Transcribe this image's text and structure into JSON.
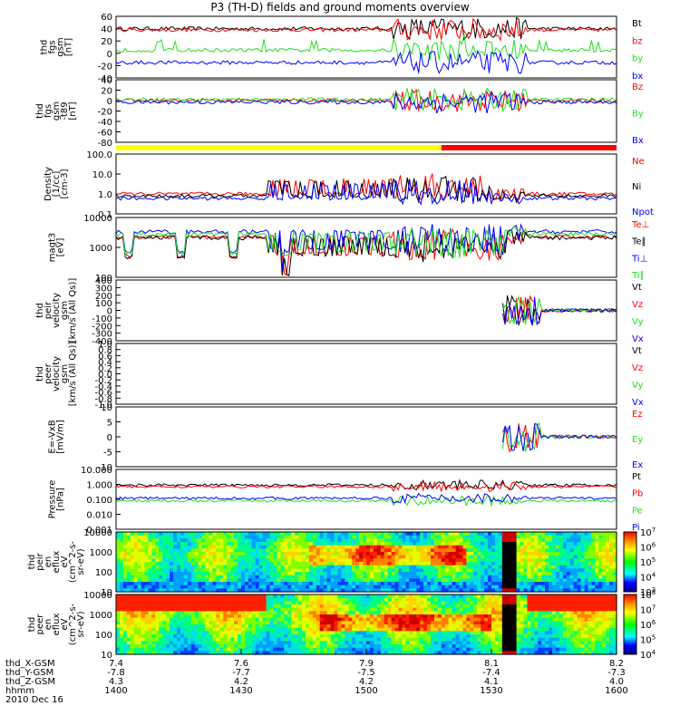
{
  "title": "P3 (TH-D) fields and ground moments overview",
  "date_label": "2010 Dec 16",
  "colors": {
    "black": "#000000",
    "red": "#ff0000",
    "green": "#22dd22",
    "blue": "#0000ff"
  },
  "chart_data": [
    {
      "type": "line",
      "ylabel": [
        "thd",
        "fgs",
        "gsm",
        "[nT]"
      ],
      "ylim": [
        -40,
        60
      ],
      "ticks": [
        "60",
        "40",
        "20",
        "0",
        "-20",
        "-40"
      ],
      "series": [
        {
          "name": "Bt",
          "color": "#000000",
          "level": 40
        },
        {
          "name": "bz",
          "color": "#ff0000",
          "level": 38
        },
        {
          "name": "by",
          "color": "#22dd22",
          "level": 5
        },
        {
          "name": "bx",
          "color": "#0000ff",
          "level": -15
        }
      ]
    },
    {
      "type": "line",
      "ylabel": [
        "thd",
        "fgs",
        "gsm",
        "-t89",
        "[nT]"
      ],
      "ylim": [
        -80,
        40
      ],
      "ticks": [
        "40",
        "20",
        "0",
        "-20",
        "-40",
        "-60",
        "-80"
      ],
      "series": [
        {
          "name": "Bz",
          "color": "#ff0000",
          "level": 0
        },
        {
          "name": "By",
          "color": "#22dd22",
          "level": 2
        },
        {
          "name": "Bx",
          "color": "#0000ff",
          "level": -3
        }
      ]
    },
    {
      "type": "line",
      "ylabel": [
        "Density",
        "[1/cc]",
        "[cm-3]"
      ],
      "log": true,
      "ylim": [
        0.1,
        100
      ],
      "ticks": [
        "100.0",
        "10.0",
        "1.0",
        "0.1"
      ],
      "series": [
        {
          "name": "Ne",
          "color": "#ff0000",
          "level": 1.0
        },
        {
          "name": "Ni",
          "color": "#000000",
          "level": 0.8
        },
        {
          "name": "Npot",
          "color": "#0000ff",
          "level": 0.6
        }
      ]
    },
    {
      "type": "line",
      "ylabel": [
        "magt3",
        "[eV]"
      ],
      "log": true,
      "ylim": [
        30,
        10000
      ],
      "ticks": [
        "10000",
        "1000",
        "100"
      ],
      "series": [
        {
          "name": "Te⊥",
          "color": "#ff0000",
          "level": 1500
        },
        {
          "name": "Te∥",
          "color": "#000000",
          "level": 1400
        },
        {
          "name": "Ti⊥",
          "color": "#0000ff",
          "level": 2500
        },
        {
          "name": "Ti∥",
          "color": "#22dd22",
          "level": 2000
        }
      ]
    },
    {
      "type": "line",
      "ylabel": [
        "thd",
        "peir",
        "velocity",
        "gsm",
        "[km/s (All Qs)]"
      ],
      "ylim": [
        -400,
        400
      ],
      "ticks": [
        "400",
        "300",
        "200",
        "100",
        "0",
        "-100",
        "-200",
        "-300",
        "-400"
      ],
      "series": [
        {
          "name": "Vt",
          "color": "#000000",
          "level": 0
        },
        {
          "name": "Vz",
          "color": "#ff0000",
          "level": 0
        },
        {
          "name": "Vy",
          "color": "#22dd22",
          "level": 0
        },
        {
          "name": "Vx",
          "color": "#0000ff",
          "level": 0
        }
      ]
    },
    {
      "type": "line",
      "ylabel": [
        "thd",
        "peer",
        "velocity",
        "gsm",
        "[km/s (All Qs)]"
      ],
      "ylim": [
        -1.0,
        1.0
      ],
      "ticks": [
        "1.0",
        "0.8",
        "0.6",
        "0.4",
        "0.2",
        "0.0",
        "-0.2",
        "-0.4",
        "-0.6",
        "-0.8",
        "-1.0"
      ],
      "series": [
        {
          "name": "Vt",
          "color": "#000000"
        },
        {
          "name": "Vz",
          "color": "#ff0000"
        },
        {
          "name": "Vy",
          "color": "#22dd22"
        },
        {
          "name": "Vx",
          "color": "#0000ff"
        }
      ]
    },
    {
      "type": "line",
      "ylabel": [
        "E=-VxB",
        "[mV/m]"
      ],
      "ylim": [
        -10,
        10
      ],
      "ticks": [
        "10",
        "5",
        "0",
        "-5",
        "-10"
      ],
      "series": [
        {
          "name": "Ez",
          "color": "#ff0000",
          "level": 0
        },
        {
          "name": "Ey",
          "color": "#22dd22",
          "level": 0
        },
        {
          "name": "Ex",
          "color": "#0000ff",
          "level": 0
        }
      ]
    },
    {
      "type": "line",
      "ylabel": [
        "Pressure",
        "[nPa]"
      ],
      "log": true,
      "ylim": [
        0.001,
        10
      ],
      "ticks": [
        "10.000",
        "1.000",
        "0.100",
        "0.010",
        "0.001"
      ],
      "series": [
        {
          "name": "Pt",
          "color": "#000000",
          "level": 0.9
        },
        {
          "name": "Pb",
          "color": "#ff0000",
          "level": 0.7
        },
        {
          "name": "Pe",
          "color": "#22dd22",
          "level": 0.08
        },
        {
          "name": "Pi",
          "color": "#0000ff",
          "level": 0.12
        }
      ]
    },
    {
      "type": "heatmap",
      "ylabel": [
        "thd",
        "peir",
        "en",
        "eflux",
        "eV",
        "(cm^2-s-",
        "sr-eV)"
      ],
      "ticks": [
        "10000",
        "1000",
        "100",
        "10"
      ],
      "colorbar": [
        "10^7",
        "10^6",
        "10^5",
        "10^4",
        "10^3"
      ]
    },
    {
      "type": "heatmap",
      "ylabel": [
        "thd",
        "peer",
        "en",
        "eflux",
        "eV",
        "(cm^2-s-",
        "sr-eV)"
      ],
      "ticks": [
        "10000",
        "1000",
        "100",
        "10"
      ],
      "colorbar": [
        "10^8",
        "10^7",
        "10^6",
        "10^5",
        "10^4"
      ]
    }
  ],
  "mode_bar": {
    "segments": [
      {
        "from": "1400",
        "to": "1530",
        "color": "#ffff00"
      },
      {
        "from": "1530",
        "to": "1600",
        "color": "#ff0000"
      }
    ]
  },
  "x_axis": {
    "row_labels": [
      "thd_X-GSM",
      "thd_Y-GSM",
      "thd_Z-GSM",
      "hhmm"
    ],
    "columns": [
      {
        "x": "7.4",
        "y": "-7.8",
        "z": "4.3",
        "t": "1400"
      },
      {
        "x": "7.6",
        "y": "-7.7",
        "z": "4.2",
        "t": "1430"
      },
      {
        "x": "7.9",
        "y": "-7.5",
        "z": "4.2",
        "t": "1500"
      },
      {
        "x": "8.1",
        "y": "-7.4",
        "z": "4.1",
        "t": "1530"
      },
      {
        "x": "8.2",
        "y": "-7.3",
        "z": "4.0",
        "t": "1600"
      }
    ]
  }
}
